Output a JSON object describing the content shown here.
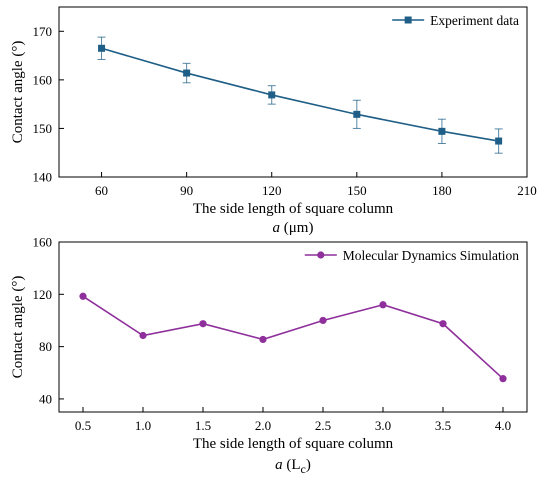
{
  "chart_data": [
    {
      "type": "line",
      "ylabel": "Contact angle (°)",
      "xlabel_line1": "The side length of square column",
      "xlabel_var": "a",
      "xlabel_unit": " (μm)",
      "xlim": [
        45,
        210
      ],
      "ylim": [
        140,
        175
      ],
      "xticks": [
        60,
        90,
        120,
        150,
        180,
        210
      ],
      "yticks": [
        140,
        150,
        160,
        170
      ],
      "legend_position": "top-right",
      "grid": false,
      "series": [
        {
          "name": "Experiment data",
          "color": "#1f5f87",
          "marker": "square",
          "x": [
            60,
            90,
            120,
            150,
            180,
            200
          ],
          "y": [
            166.5,
            161.4,
            156.9,
            152.9,
            149.4,
            147.4
          ],
          "error": [
            2.3,
            2.0,
            1.9,
            2.9,
            2.5,
            2.5
          ]
        }
      ]
    },
    {
      "type": "line",
      "ylabel": "Contact angle (°)",
      "xlabel_line1": "The side length of square column",
      "xlabel_var": "a",
      "xlabel_unit_main": " (L",
      "xlabel_unit_sub": "c",
      "xlabel_unit_close": ")",
      "xlim": [
        0.3,
        4.2
      ],
      "ylim": [
        30,
        160
      ],
      "xticks": [
        0.5,
        1.0,
        1.5,
        2.0,
        2.5,
        3.0,
        3.5,
        4.0
      ],
      "yticks": [
        40,
        80,
        120,
        160
      ],
      "legend_position": "top-right",
      "grid": false,
      "series": [
        {
          "name": "Molecular Dynamics Simulation",
          "color": "#8e2f9b",
          "marker": "circle",
          "x": [
            0.5,
            1.0,
            1.5,
            2.0,
            2.5,
            3.0,
            3.5,
            4.0
          ],
          "y": [
            118.5,
            88.5,
            97.5,
            85.5,
            100,
            112,
            97.5,
            55.5
          ]
        }
      ]
    }
  ]
}
